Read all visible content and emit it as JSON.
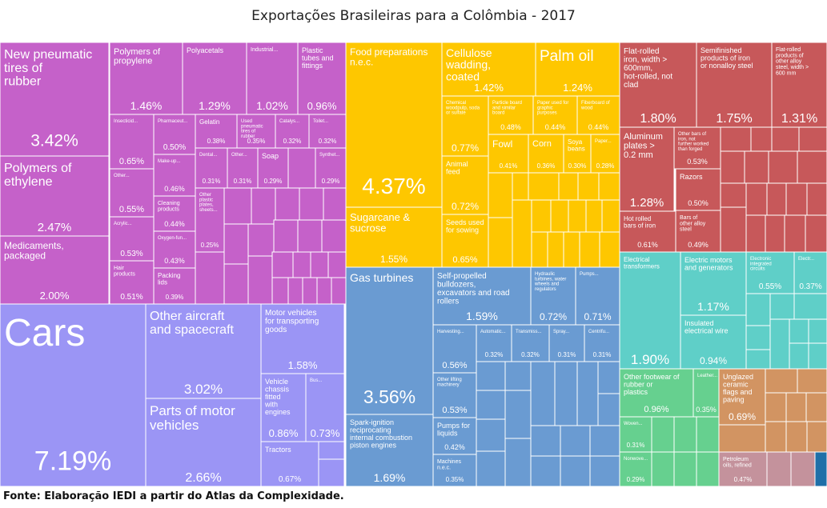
{
  "header": {
    "title": "Exportações Brasileiras para a Colômbia - 2017"
  },
  "footer": {
    "source": "Fonte: Elaboração IEDI a partir do Atlas da Complexidade."
  },
  "colors": {
    "chemicals": "#c561c9",
    "vehicles": "#9b95f5",
    "food": "#fec700",
    "machinery": "#6a9bd2",
    "metals": "#c7585a",
    "electronics": "#5fcfc8",
    "textiles": "#66d08f",
    "stone": "#d29462",
    "minerals": "#c4929c",
    "small_dark": "#1f6fa8"
  },
  "chart_data": {
    "type": "treemap",
    "title": "Exportações Brasileiras para a Colômbia - 2017",
    "unit": "%",
    "items": [
      {
        "name": "New pneumatic tires of rubber",
        "value": 3.42,
        "group": "chemicals"
      },
      {
        "name": "Polymers of ethylene",
        "value": 2.47,
        "group": "chemicals"
      },
      {
        "name": "Medicaments, packaged",
        "value": 2.0,
        "group": "chemicals"
      },
      {
        "name": "Polymers of propylene",
        "value": 1.46,
        "group": "chemicals"
      },
      {
        "name": "Polyacetals",
        "value": 1.29,
        "group": "chemicals"
      },
      {
        "name": "Industrial...",
        "value": 1.02,
        "group": "chemicals"
      },
      {
        "name": "Plastic tubes and fittings",
        "value": 0.96,
        "group": "chemicals"
      },
      {
        "name": "Insecticid...",
        "value": 0.65,
        "group": "chemicals"
      },
      {
        "name": "Other...",
        "value": 0.55,
        "group": "chemicals"
      },
      {
        "name": "Acrylic...",
        "value": 0.53,
        "group": "chemicals"
      },
      {
        "name": "Hair products",
        "value": 0.51,
        "group": "chemicals"
      },
      {
        "name": "Pharmaceut...",
        "value": 0.5,
        "group": "chemicals"
      },
      {
        "name": "Make-up...",
        "value": 0.46,
        "group": "chemicals"
      },
      {
        "name": "Cleaning products",
        "value": 0.44,
        "group": "chemicals"
      },
      {
        "name": "Oxygen-fun...",
        "value": 0.43,
        "group": "chemicals"
      },
      {
        "name": "Packing lids",
        "value": 0.39,
        "group": "chemicals"
      },
      {
        "name": "Gelatin",
        "value": 0.38,
        "group": "chemicals"
      },
      {
        "name": "Used pneumatic tires of rubber",
        "value": 0.35,
        "group": "chemicals"
      },
      {
        "name": "Catalys...",
        "value": 0.32,
        "group": "chemicals"
      },
      {
        "name": "Toilet...",
        "value": 0.32,
        "group": "chemicals"
      },
      {
        "name": "Dental...",
        "value": 0.31,
        "group": "chemicals"
      },
      {
        "name": "Other...",
        "value": 0.31,
        "group": "chemicals"
      },
      {
        "name": "Soap",
        "value": 0.29,
        "group": "chemicals"
      },
      {
        "name": "Synthet...",
        "value": 0.29,
        "group": "chemicals"
      },
      {
        "name": "Other plastic plates, sheets...",
        "value": 0.25,
        "group": "chemicals"
      },
      {
        "name": "Cars",
        "value": 7.19,
        "group": "vehicles"
      },
      {
        "name": "Other aircraft and spacecraft",
        "value": 3.02,
        "group": "vehicles"
      },
      {
        "name": "Parts of motor vehicles",
        "value": 2.66,
        "group": "vehicles"
      },
      {
        "name": "Motor vehicles for transporting goods",
        "value": 1.58,
        "group": "vehicles"
      },
      {
        "name": "Vehicle chassis fitted with engines",
        "value": 0.86,
        "group": "vehicles"
      },
      {
        "name": "Bus...",
        "value": 0.73,
        "group": "vehicles"
      },
      {
        "name": "Tractors",
        "value": 0.67,
        "group": "vehicles"
      },
      {
        "name": "Food preparations n.e.c.",
        "value": 4.37,
        "group": "food"
      },
      {
        "name": "Sugarcane & sucrose",
        "value": 1.55,
        "group": "food"
      },
      {
        "name": "Cellulose wadding, coated",
        "value": 1.42,
        "group": "food"
      },
      {
        "name": "Palm oil",
        "value": 1.24,
        "group": "food"
      },
      {
        "name": "Chemical woodpulp, soda or sulfate",
        "value": 0.77,
        "group": "food"
      },
      {
        "name": "Animal feed",
        "value": 0.72,
        "group": "food"
      },
      {
        "name": "Seeds used for sowing",
        "value": 0.65,
        "group": "food"
      },
      {
        "name": "Particle board and similar board",
        "value": 0.48,
        "group": "food"
      },
      {
        "name": "Paper used for graphic purposes",
        "value": 0.44,
        "group": "food"
      },
      {
        "name": "Fiberboard of wood",
        "value": 0.44,
        "group": "food"
      },
      {
        "name": "Fowl",
        "value": 0.41,
        "group": "food"
      },
      {
        "name": "Corn",
        "value": 0.36,
        "group": "food"
      },
      {
        "name": "Soya beans",
        "value": 0.3,
        "group": "food"
      },
      {
        "name": "Paper...",
        "value": 0.28,
        "group": "food"
      },
      {
        "name": "Gas turbines",
        "value": 3.56,
        "group": "machinery"
      },
      {
        "name": "Spark-ignition reciprocating internal combustion piston engines",
        "value": 1.69,
        "group": "machinery"
      },
      {
        "name": "Self-propelled bulldozers, excavators and road rollers",
        "value": 1.59,
        "group": "machinery"
      },
      {
        "name": "Hydraulic turbines, water wheels and regulators",
        "value": 0.72,
        "group": "machinery"
      },
      {
        "name": "Pumps...",
        "value": 0.71,
        "group": "machinery"
      },
      {
        "name": "Harvesting...",
        "value": 0.56,
        "group": "machinery"
      },
      {
        "name": "Other lifting machinery",
        "value": 0.53,
        "group": "machinery"
      },
      {
        "name": "Pumps for liquids",
        "value": 0.42,
        "group": "machinery"
      },
      {
        "name": "Machines n.e.c.",
        "value": 0.35,
        "group": "machinery"
      },
      {
        "name": "Automatic...",
        "value": 0.32,
        "group": "machinery"
      },
      {
        "name": "Transmiss...",
        "value": 0.32,
        "group": "machinery"
      },
      {
        "name": "Spray...",
        "value": 0.31,
        "group": "machinery"
      },
      {
        "name": "Centrifu...",
        "value": 0.31,
        "group": "machinery"
      },
      {
        "name": "Flat-rolled iron, width > 600mm, hot-rolled, not clad",
        "value": 1.8,
        "group": "metals"
      },
      {
        "name": "Semifinished products of iron or nonalloy steel",
        "value": 1.75,
        "group": "metals"
      },
      {
        "name": "Flat-rolled products of other alloy steel, width > 600 mm",
        "value": 1.31,
        "group": "metals"
      },
      {
        "name": "Aluminum plates > 0.2 mm",
        "value": 1.28,
        "group": "metals"
      },
      {
        "name": "Hot rolled bars of iron",
        "value": 0.61,
        "group": "metals"
      },
      {
        "name": "Other bars of iron, not further worked than forged",
        "value": 0.53,
        "group": "metals"
      },
      {
        "name": "Razors",
        "value": 0.5,
        "group": "metals"
      },
      {
        "name": "Bars of other alloy steel",
        "value": 0.49,
        "group": "metals"
      },
      {
        "name": "Electrical transformers",
        "value": 1.9,
        "group": "electronics"
      },
      {
        "name": "Electric motors and generators",
        "value": 1.17,
        "group": "electronics"
      },
      {
        "name": "Insulated electrical wire",
        "value": 0.94,
        "group": "electronics"
      },
      {
        "name": "Electronic integrated circuits",
        "value": 0.55,
        "group": "electronics"
      },
      {
        "name": "Electr...",
        "value": 0.37,
        "group": "electronics"
      },
      {
        "name": "Other footwear of rubber or plastics",
        "value": 0.96,
        "group": "textiles"
      },
      {
        "name": "Leather...",
        "value": 0.35,
        "group": "textiles"
      },
      {
        "name": "Woven...",
        "value": 0.31,
        "group": "textiles"
      },
      {
        "name": "Nonwove...",
        "value": 0.29,
        "group": "textiles"
      },
      {
        "name": "Unglazed ceramic flags and paving",
        "value": 0.69,
        "group": "stone"
      },
      {
        "name": "Petroleum oils, refined",
        "value": 0.47,
        "group": "minerals"
      }
    ]
  }
}
